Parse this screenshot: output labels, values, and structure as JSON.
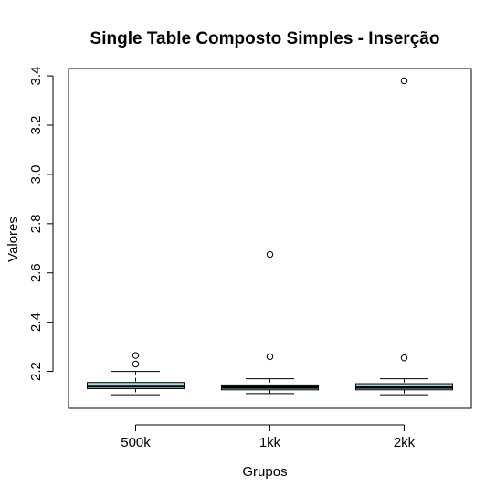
{
  "chart_data": {
    "type": "boxplot",
    "title": "Single Table Composto Simples - Inserção",
    "xlabel": "Grupos",
    "ylabel": "Valores",
    "categories": [
      "500k",
      "1kk",
      "2kk"
    ],
    "ylim": [
      2.05,
      3.43
    ],
    "yticks": [
      2.2,
      2.4,
      2.6,
      2.8,
      3.0,
      3.2,
      3.4
    ],
    "ytick_labels": [
      "2.2",
      "2.4",
      "2.6",
      "2.8",
      "3.0",
      "3.2",
      "3.4"
    ],
    "box_fill": "#add8e6",
    "series": [
      {
        "category": "500k",
        "whisker_low": 2.105,
        "q1": 2.13,
        "median": 2.14,
        "q3": 2.155,
        "whisker_high": 2.2,
        "outliers": [
          2.23,
          2.265
        ]
      },
      {
        "category": "1kk",
        "whisker_low": 2.11,
        "q1": 2.125,
        "median": 2.135,
        "q3": 2.145,
        "whisker_high": 2.17,
        "outliers": [
          2.26,
          2.675
        ]
      },
      {
        "category": "2kk",
        "whisker_low": 2.105,
        "q1": 2.125,
        "median": 2.135,
        "q3": 2.15,
        "whisker_high": 2.17,
        "outliers": [
          2.255,
          3.38
        ]
      }
    ]
  }
}
